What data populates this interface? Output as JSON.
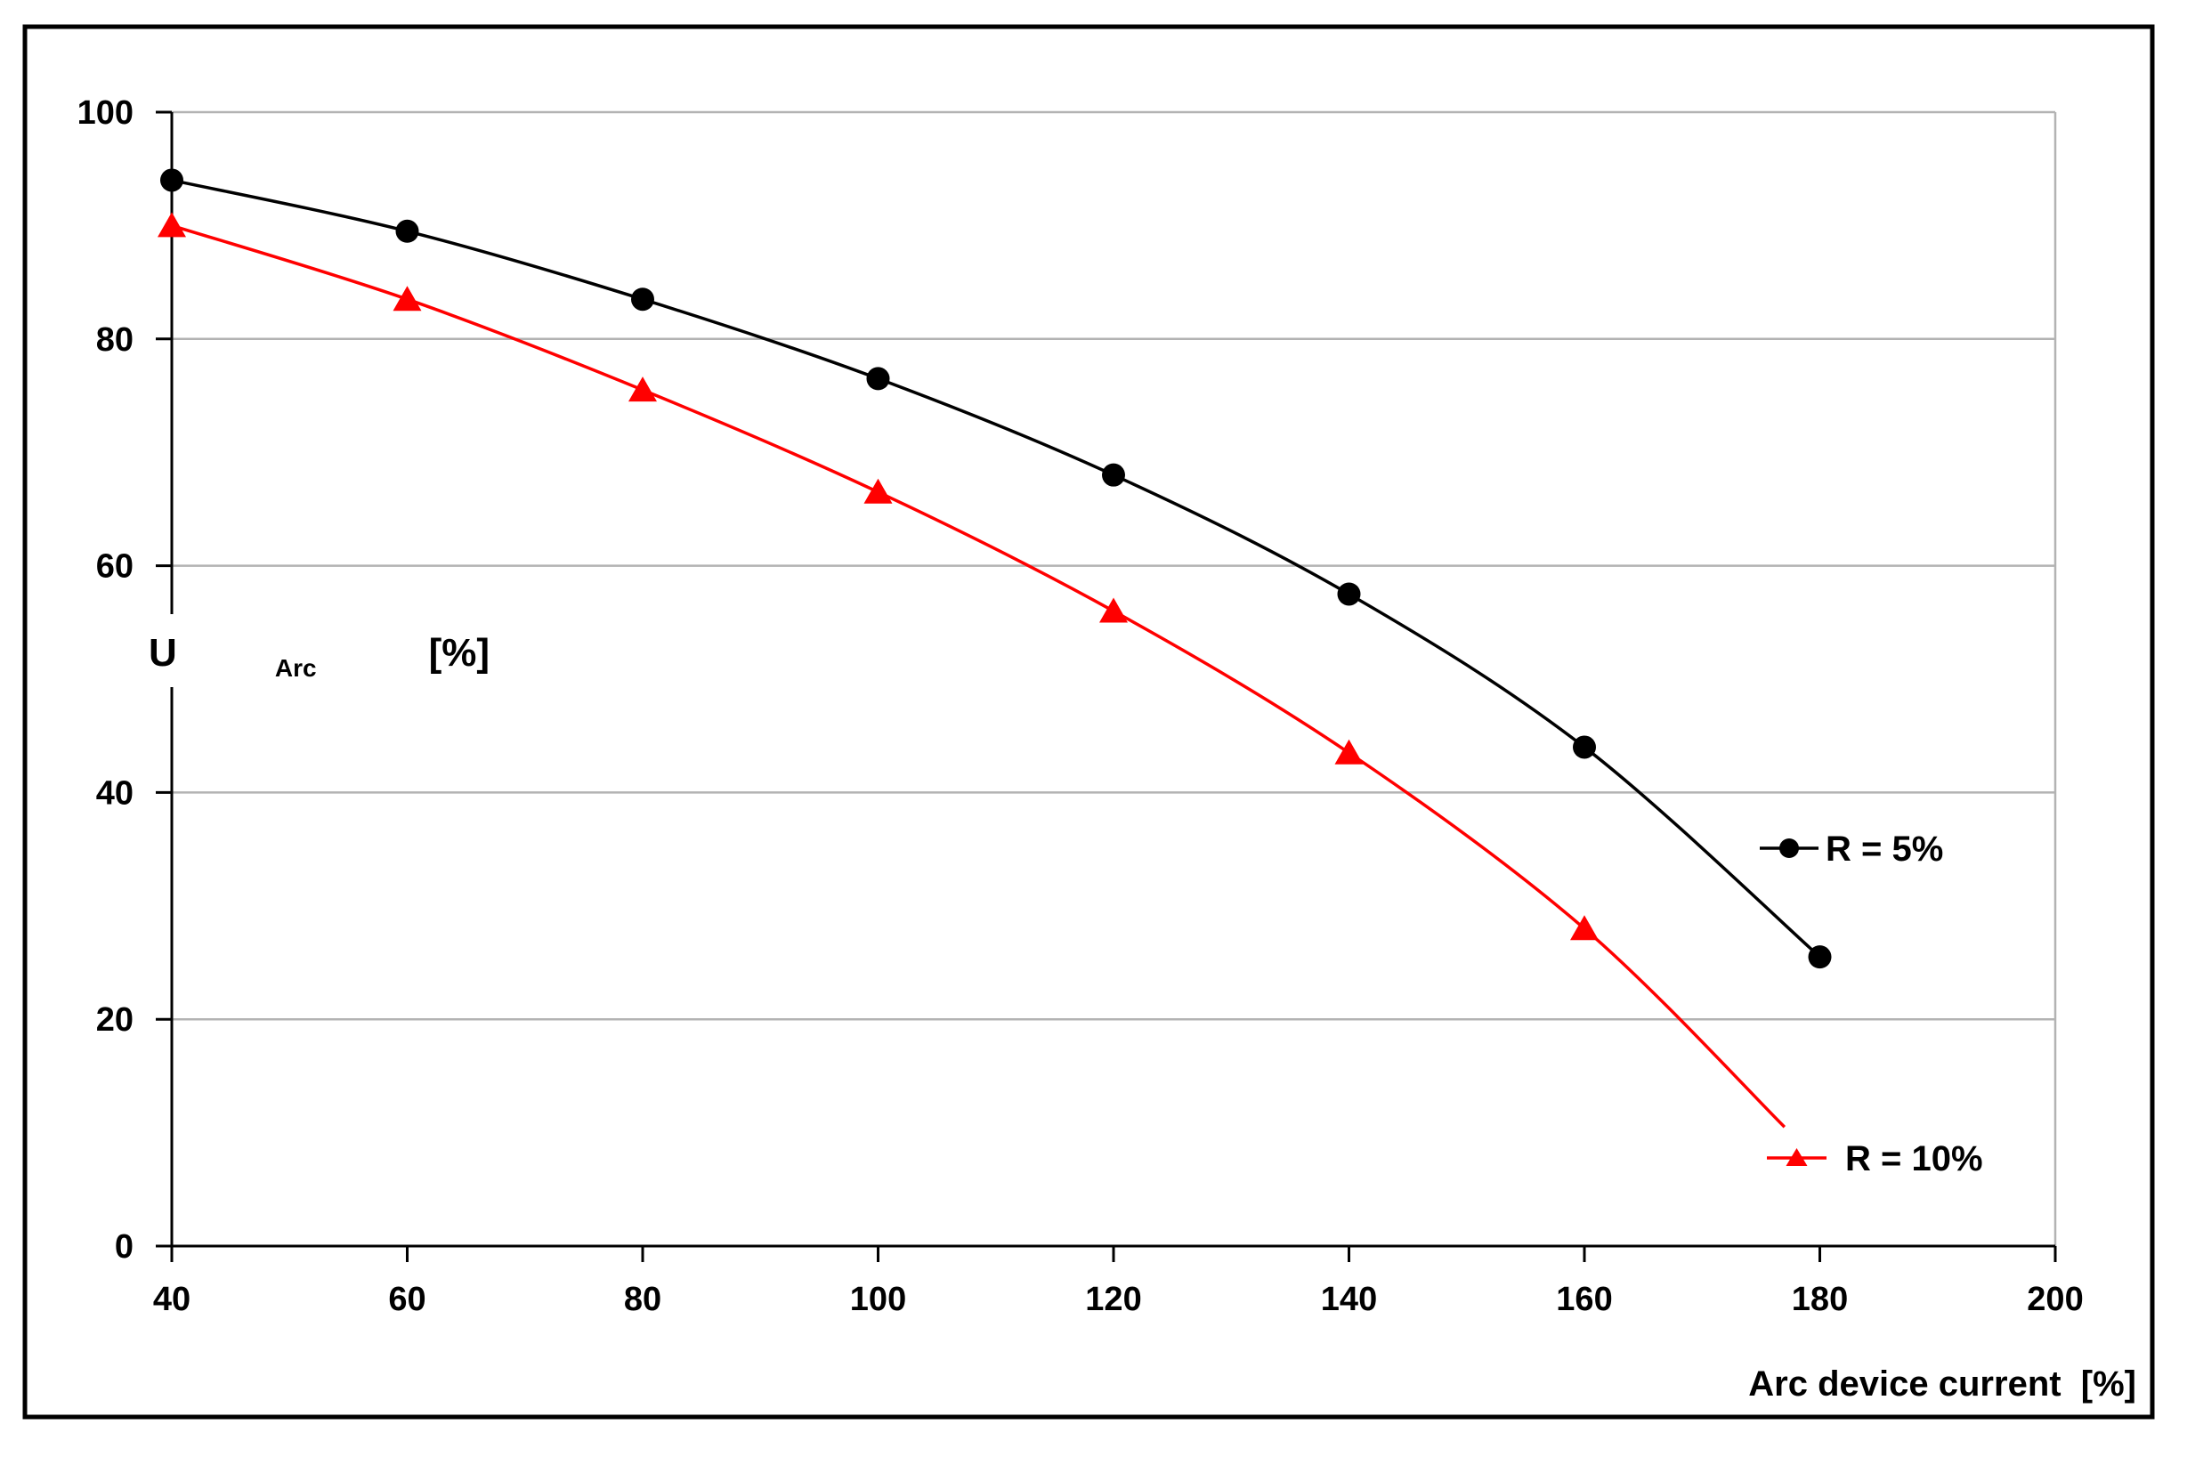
{
  "chart_data": {
    "type": "line",
    "title": "",
    "xlabel": "Arc device current  [%]",
    "ylabel": "U_Arc [%]",
    "ylabel_parts": {
      "symbol": "U",
      "subscript": "Arc",
      "unit": "[%]"
    },
    "xlim": [
      40,
      200
    ],
    "ylim": [
      0,
      100
    ],
    "x_ticks": [
      40,
      60,
      80,
      100,
      120,
      140,
      160,
      180,
      200
    ],
    "y_ticks": [
      0,
      20,
      40,
      60,
      80,
      100
    ],
    "grid": "horizontal-only",
    "legend_position": "inside-right",
    "series": [
      {
        "name": "R = 5%",
        "color": "#000000",
        "marker": "circle",
        "smooth": true,
        "marker_on_last_point": true,
        "x": [
          40,
          60,
          80,
          100,
          120,
          140,
          160,
          180
        ],
        "values": [
          94,
          89.5,
          83.5,
          76.5,
          68,
          57.5,
          44,
          25.5
        ]
      },
      {
        "name": "R = 10%",
        "color": "#ff0000",
        "marker": "triangle",
        "smooth": true,
        "marker_on_last_point": false,
        "x": [
          40,
          60,
          80,
          100,
          120,
          140,
          160,
          177
        ],
        "values": [
          90,
          83.5,
          75.5,
          66.5,
          56,
          43.5,
          28,
          10.5
        ]
      }
    ],
    "colors": {
      "background": "#ffffff",
      "gridline": "#b3b3b3",
      "plot_right_border": "#b3b3b3",
      "axis": "#000000",
      "outer_border": "#000000"
    }
  }
}
